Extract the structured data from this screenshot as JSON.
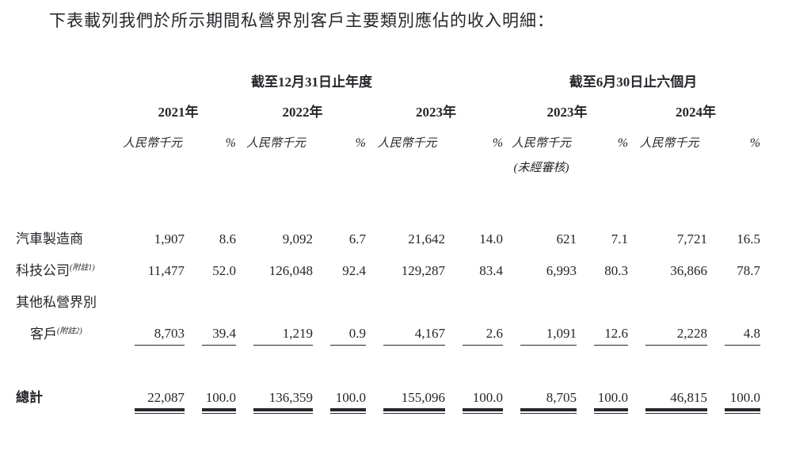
{
  "page": {
    "background_color": "#ffffff",
    "text_color": "#26262b"
  },
  "title": "下表載列我們於所示期間私營界別客戶主要類別應佔的收入明細：",
  "table": {
    "period_headers": [
      {
        "label": "截至12月31日止年度",
        "span_columns": 6
      },
      {
        "label": "截至6月30日止六個月",
        "span_columns": 4
      }
    ],
    "year_headers": [
      "2021年",
      "2022年",
      "2023年",
      "2023年",
      "2024年"
    ],
    "unit_label": "人民幣千元",
    "percent_label": "%",
    "unaudited_label": "(未經審核)",
    "rows": [
      {
        "label": "汽車製造商",
        "note": "",
        "indent": false,
        "underline": false,
        "values": [
          "1,907",
          "8.6",
          "9,092",
          "6.7",
          "21,642",
          "14.0",
          "621",
          "7.1",
          "7,721",
          "16.5"
        ]
      },
      {
        "label": "科技公司",
        "note": "(附註1)",
        "indent": false,
        "underline": false,
        "values": [
          "11,477",
          "52.0",
          "126,048",
          "92.4",
          "129,287",
          "83.4",
          "6,993",
          "80.3",
          "36,866",
          "78.7"
        ]
      },
      {
        "label": "其他私營界別",
        "note": "",
        "indent": false,
        "underline": false,
        "values": [
          "",
          "",
          "",
          "",
          "",
          "",
          "",
          "",
          "",
          ""
        ]
      },
      {
        "label": "客戶",
        "note": "(附註2)",
        "indent": true,
        "underline": true,
        "values": [
          "8,703",
          "39.4",
          "1,219",
          "0.9",
          "4,167",
          "2.6",
          "1,091",
          "12.6",
          "2,228",
          "4.8"
        ]
      }
    ],
    "total_row": {
      "label": "總計",
      "values": [
        "22,087",
        "100.0",
        "136,359",
        "100.0",
        "155,096",
        "100.0",
        "8,705",
        "100.0",
        "46,815",
        "100.0"
      ]
    }
  }
}
